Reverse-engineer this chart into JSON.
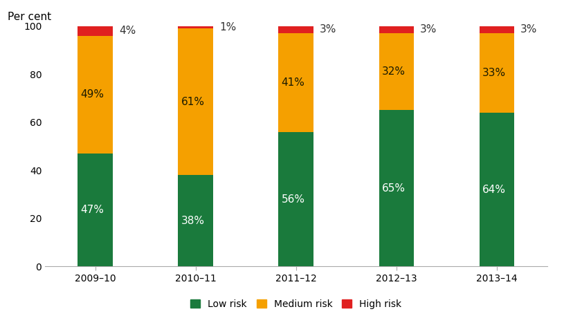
{
  "categories": [
    "2009–10",
    "2010–11",
    "2011–12",
    "2012–13",
    "2013–14"
  ],
  "low_risk": [
    47,
    38,
    56,
    65,
    64
  ],
  "medium_risk": [
    49,
    61,
    41,
    32,
    33
  ],
  "high_risk": [
    4,
    1,
    3,
    3,
    3
  ],
  "low_color": "#1a7a3c",
  "medium_color": "#f5a000",
  "high_color": "#e02020",
  "ylabel": "Per cent",
  "ylim": [
    0,
    100
  ],
  "yticks": [
    0,
    20,
    40,
    60,
    80,
    100
  ],
  "bar_width": 0.35,
  "legend_labels": [
    "Low risk",
    "Medium risk",
    "High risk"
  ],
  "label_color_low": "white",
  "label_color_medium": "#1a1a00",
  "title_fontsize": 11,
  "tick_fontsize": 10,
  "label_fontsize": 11
}
